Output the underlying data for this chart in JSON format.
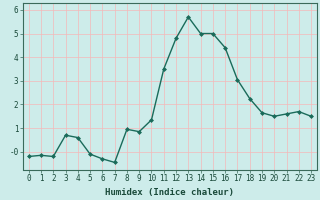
{
  "x": [
    0,
    1,
    2,
    3,
    4,
    5,
    6,
    7,
    8,
    9,
    10,
    11,
    12,
    13,
    14,
    15,
    16,
    17,
    18,
    19,
    20,
    21,
    22,
    23
  ],
  "y": [
    -0.2,
    -0.15,
    -0.2,
    0.7,
    0.6,
    -0.1,
    -0.3,
    -0.45,
    0.95,
    0.85,
    1.35,
    3.5,
    4.8,
    5.7,
    5.0,
    5.0,
    4.4,
    3.05,
    2.25,
    1.65,
    1.5,
    1.6,
    1.7,
    1.5
  ],
  "line_color": "#1a6b5a",
  "marker": "D",
  "marker_size": 2.0,
  "linewidth": 1.0,
  "xlabel": "Humidex (Indice chaleur)",
  "ylim": [
    -0.75,
    6.3
  ],
  "xlim": [
    -0.5,
    23.5
  ],
  "yticks": [
    0,
    1,
    2,
    3,
    4,
    5,
    6
  ],
  "ytick_labels": [
    "-0",
    "1",
    "2",
    "3",
    "4",
    "5",
    "6"
  ],
  "xticks": [
    0,
    1,
    2,
    3,
    4,
    5,
    6,
    7,
    8,
    9,
    10,
    11,
    12,
    13,
    14,
    15,
    16,
    17,
    18,
    19,
    20,
    21,
    22,
    23
  ],
  "background_color": "#cdecea",
  "grid_color": "#f5b8b8",
  "grid_linewidth": 0.5,
  "xlabel_fontsize": 6.5,
  "tick_fontsize": 5.5
}
